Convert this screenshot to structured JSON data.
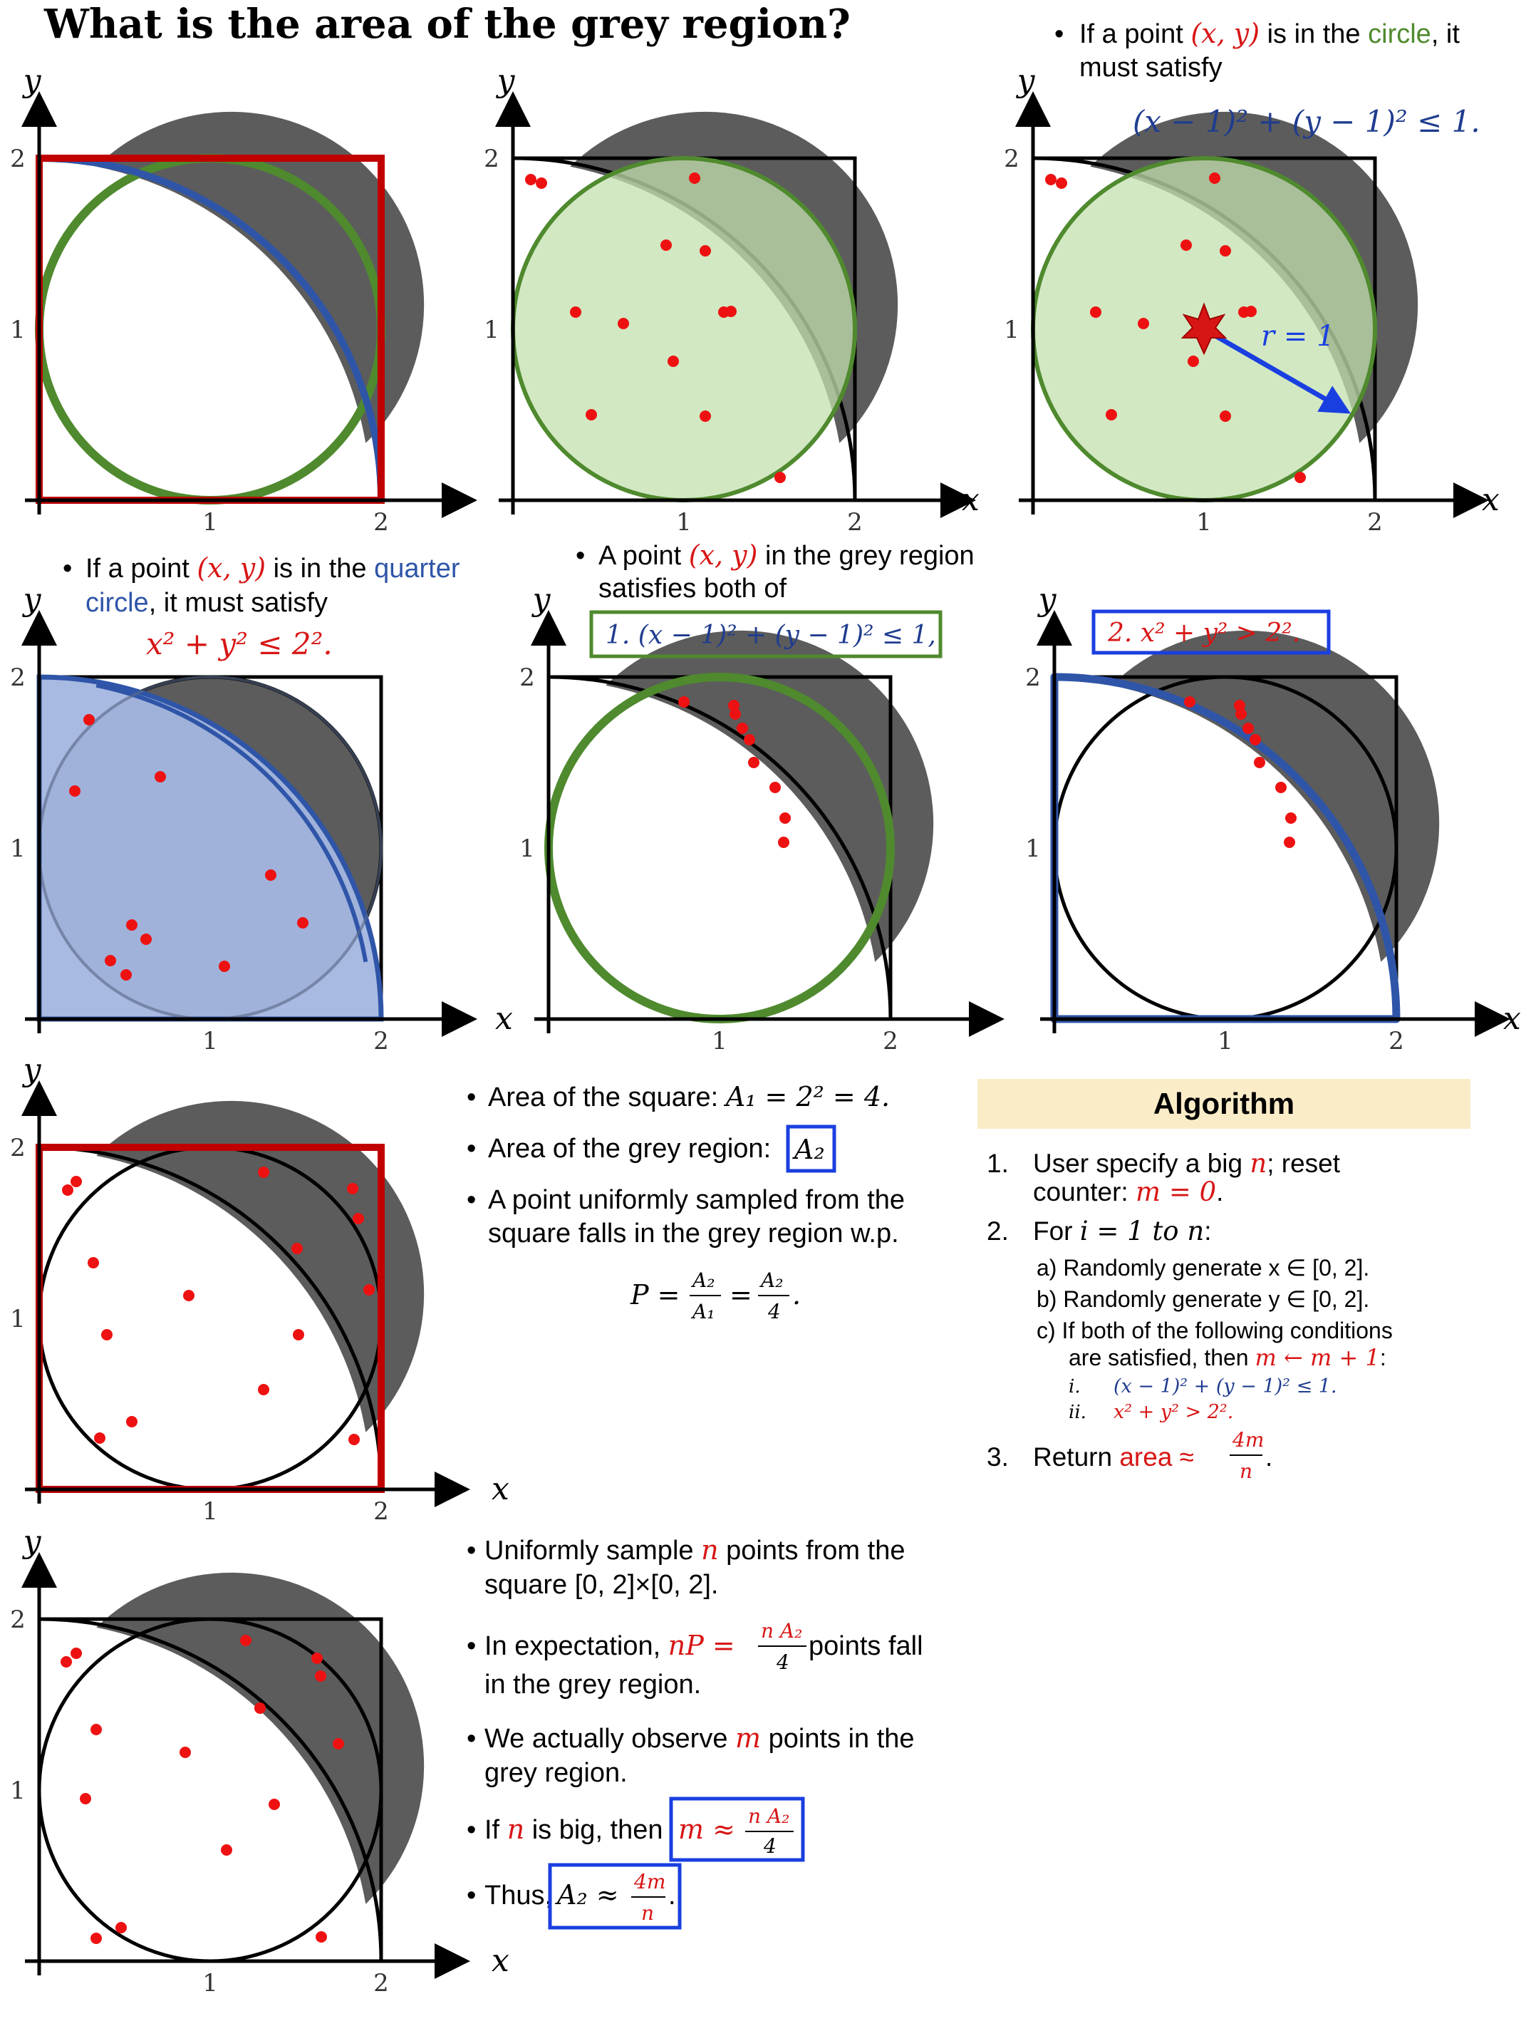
{
  "title": "What is the area of the grey region?",
  "axis": {
    "x": "x",
    "y": "y",
    "tick_x": [
      "1",
      "2"
    ],
    "tick_y": [
      "1",
      "2"
    ]
  },
  "colors": {
    "red": "#d81515",
    "green": "#4f8a2e",
    "blue": "#2f55a8",
    "grey": "#5c5c5c",
    "light_green": "#c3e0ad",
    "light_blue": "#a3b6e0",
    "alg_bg": "#fbecc8"
  },
  "panel3": {
    "text_a": "If a point ",
    "point": "(x, y)",
    "text_b": " is in the ",
    "circle": "circle",
    "text_c": ", it",
    "line2": "must satisfy",
    "formula": "(x − 1)² + (y − 1)² ≤ 1.",
    "radius_label": "r = 1"
  },
  "row2_left": {
    "text_a": "If a point ",
    "point": "(x, y)",
    "text_b": " is in the ",
    "quarter": "quarter",
    "circle_word": "circle",
    "text_c": ", it must satisfy",
    "formula": "x² + y² ≤ 2²."
  },
  "row2_mid": {
    "text_a": "A point ",
    "point": "(x, y)",
    "text_b": " in the grey region",
    "line2": "satisfies both of",
    "cond1": "1.  (x − 1)² + (y − 1)² ≤ 1,"
  },
  "row2_right": {
    "cond2": "2.  x² + y² > 2²."
  },
  "area_block": {
    "b1_a": "Area of the square: ",
    "b1_math": "A₁ = 2² = 4.",
    "b2_a": "Area of the grey region: ",
    "b2_math": "A₂",
    "b3_l1": "A point uniformly sampled from the",
    "b3_l2": "square falls in the grey region w.p.",
    "p_lhs": "P =",
    "p_num1": "A₂",
    "p_den1": "A₁",
    "p_eq": "=",
    "p_num2": "A₂",
    "p_den2": "4",
    "p_end": "."
  },
  "algorithm": {
    "heading": "Algorithm",
    "s1_num": "1.",
    "s1_a": "User specify a big ",
    "s1_n": "n",
    "s1_b": "; reset",
    "s1_l2a": "counter: ",
    "s1_m": "m = 0",
    "s1_end": ".",
    "s2_num": "2.",
    "s2_a": "For ",
    "s2_i": "i = 1 to n",
    "s2_end": ":",
    "a": "a)  Randomly generate x ∈ [0, 2].",
    "b": "b)  Randomly generate y ∈ [0, 2].",
    "c1": "c)  If both of the following conditions",
    "c2a": "are satisfied, then ",
    "c2m": "m ← m + 1",
    "c2end": ":",
    "ci_num": "i.",
    "ci": "(x − 1)² + (y − 1)² ≤ 1.",
    "cii_num": "ii.",
    "cii": "x² + y² > 2².",
    "s3_num": "3.",
    "s3_a": "Return ",
    "s3_area": "area ≈",
    "s3_num_frac": "4m",
    "s3_den_frac": "n",
    "s3_end": "."
  },
  "sample_block": {
    "b1_a": "Uniformly sample ",
    "b1_n": "n",
    "b1_b": " points from the",
    "b1_l2": "square [0, 2]×[0, 2].",
    "b2_a": "In expectation, ",
    "b2_nP": "nP =",
    "b2_num": "n A₂",
    "b2_den": "4",
    "b2_b": " points fall",
    "b2_l2": "in the grey region.",
    "b3_a": "We actually observe ",
    "b3_m": "m",
    "b3_b": " points in the",
    "b3_l2": "grey region.",
    "b4_a": "If ",
    "b4_n": "n",
    "b4_b": " is big, then ",
    "b4_m": "m ≈",
    "b4_num": "n A₂",
    "b4_den": "4",
    "b5_a": "Thus, ",
    "b5_math": "A₂ ≈",
    "b5_num": "4m",
    "b5_den": "n",
    "b5_end": "."
  }
}
